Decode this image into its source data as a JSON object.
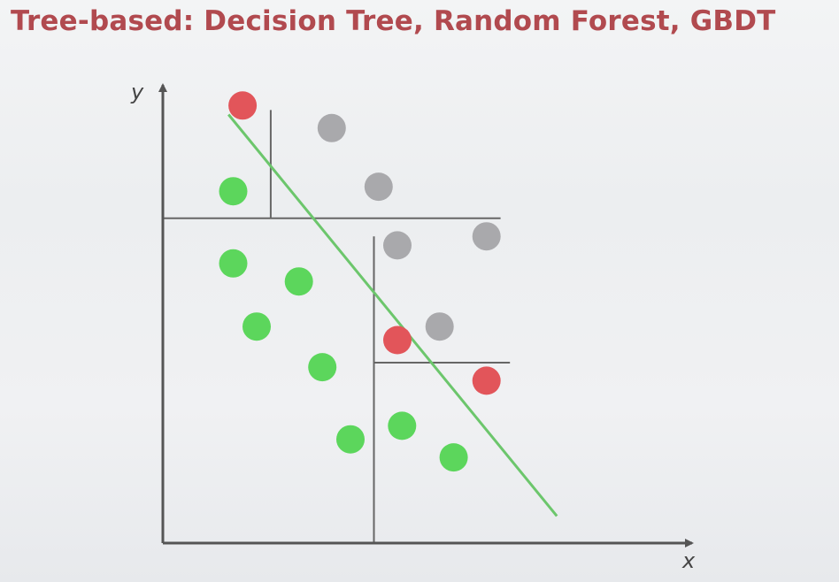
{
  "title": "Tree-based: Decision Tree, Random Forest, GBDT",
  "axes": {
    "x_label": "x",
    "y_label": "y",
    "color": "#555555"
  },
  "colors": {
    "red": "#e2555a",
    "green": "#5cd65c",
    "gray": "#a9a9ac",
    "linear_boundary": "#6cc66c",
    "tree_splits": "#666666",
    "title": "#b14a4f"
  },
  "legend": "none",
  "grid": false,
  "x_range": [
    0,
    100
  ],
  "y_range": [
    0,
    100
  ],
  "points": [
    {
      "class": "red",
      "x": 17,
      "y": 97
    },
    {
      "class": "gray",
      "x": 36,
      "y": 92
    },
    {
      "class": "green",
      "x": 15,
      "y": 78
    },
    {
      "class": "gray",
      "x": 46,
      "y": 79
    },
    {
      "class": "gray",
      "x": 50,
      "y": 66
    },
    {
      "class": "gray",
      "x": 69,
      "y": 68
    },
    {
      "class": "green",
      "x": 15,
      "y": 62
    },
    {
      "class": "green",
      "x": 29,
      "y": 58
    },
    {
      "class": "green",
      "x": 20,
      "y": 48
    },
    {
      "class": "gray",
      "x": 59,
      "y": 48
    },
    {
      "class": "red",
      "x": 50,
      "y": 45
    },
    {
      "class": "green",
      "x": 34,
      "y": 39
    },
    {
      "class": "red",
      "x": 69,
      "y": 36
    },
    {
      "class": "green",
      "x": 51,
      "y": 26
    },
    {
      "class": "green",
      "x": 40,
      "y": 23
    },
    {
      "class": "green",
      "x": 62,
      "y": 19
    }
  ],
  "tree_splits": [
    {
      "type": "horizontal",
      "at": 72,
      "from": 0,
      "to": 72
    },
    {
      "type": "vertical",
      "at": 23,
      "from": 72,
      "to": 96
    },
    {
      "type": "vertical",
      "at": 45,
      "from": 0,
      "to": 68
    },
    {
      "type": "horizontal",
      "at": 40,
      "from": 45,
      "to": 74
    }
  ],
  "linear_boundary": {
    "from": [
      14,
      95
    ],
    "to": [
      84,
      6
    ]
  }
}
